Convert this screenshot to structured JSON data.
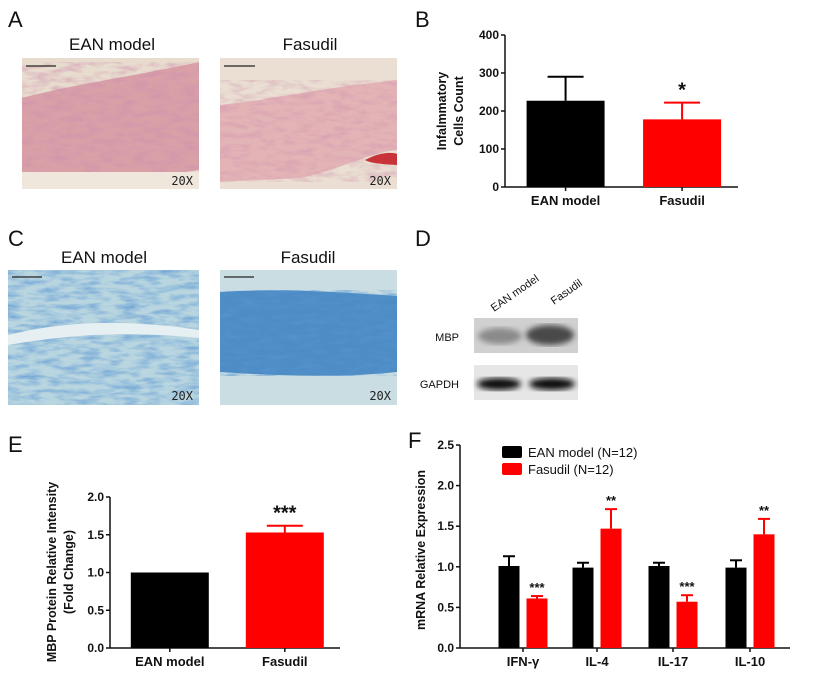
{
  "panels": {
    "A": {
      "label": "A",
      "titles": [
        "EAN model",
        "Fasudil"
      ],
      "magnification": [
        "20X",
        "20X"
      ]
    },
    "B": {
      "label": "B"
    },
    "C": {
      "label": "C",
      "titles": [
        "EAN model",
        "Fasudil"
      ],
      "magnification": [
        "20X",
        "20X"
      ]
    },
    "D": {
      "label": "D",
      "lanes": [
        "EAN model",
        "Fasudil"
      ],
      "rows": [
        "MBP",
        "GAPDH"
      ]
    },
    "E": {
      "label": "E"
    },
    "F": {
      "label": "F"
    }
  },
  "colors": {
    "ean": "#000000",
    "fasudil": "#ff0000"
  },
  "chart_data": [
    {
      "id": "B",
      "type": "bar",
      "categories": [
        "EAN model",
        "Fasudil"
      ],
      "values": [
        227,
        178
      ],
      "errors": [
        63,
        44
      ],
      "significance": [
        "",
        "*"
      ],
      "ylabel": [
        "Infalmmatory",
        "Cells Count"
      ],
      "ylim": [
        0,
        400
      ],
      "yticks": [
        "0",
        "100",
        "200",
        "300",
        "400"
      ],
      "ytick_values": [
        0,
        100,
        200,
        300,
        400
      ],
      "grid": false
    },
    {
      "id": "E",
      "type": "bar",
      "categories": [
        "EAN model",
        "Fasudil"
      ],
      "values": [
        1.0,
        1.53
      ],
      "errors": [
        0,
        0.09
      ],
      "significance": [
        "",
        "***"
      ],
      "ylabel": [
        "MBP Protein Relative Intensity",
        "(Fold Change)"
      ],
      "ylim": [
        0,
        2.0
      ],
      "yticks": [
        "0.0",
        "0.5",
        "1.0",
        "1.5",
        "2.0"
      ],
      "ytick_values": [
        0,
        0.5,
        1.0,
        1.5,
        2.0
      ],
      "grid": false
    },
    {
      "id": "F",
      "type": "bar",
      "categories": [
        "IFN-γ",
        "IL-4",
        "IL-17",
        "IL-10"
      ],
      "series": [
        {
          "name": "EAN model (N=12)",
          "values": [
            1.01,
            0.99,
            1.01,
            0.99
          ],
          "errors": [
            0.12,
            0.06,
            0.04,
            0.09
          ],
          "significance": [
            "",
            "",
            "",
            ""
          ]
        },
        {
          "name": "Fasudil (N=12)",
          "values": [
            0.61,
            1.47,
            0.57,
            1.4
          ],
          "errors": [
            0.03,
            0.24,
            0.08,
            0.19
          ],
          "significance": [
            "***",
            "**",
            "***",
            "**"
          ]
        }
      ],
      "ylabel": [
        "mRNA Relative Expression"
      ],
      "ylim": [
        0,
        2.5
      ],
      "yticks": [
        "0.0",
        "0.5",
        "1.0",
        "1.5",
        "2.0",
        "2.5"
      ],
      "ytick_values": [
        0,
        0.5,
        1.0,
        1.5,
        2.0,
        2.5
      ],
      "legend": "top-left",
      "grid": false
    }
  ]
}
